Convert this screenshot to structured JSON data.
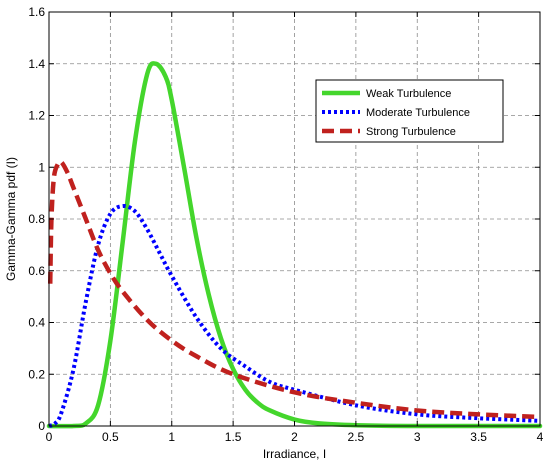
{
  "chart_data": {
    "type": "line",
    "title": "",
    "xlabel": "Irradiance, I",
    "ylabel": "Gamma-Gamma pdf (I)",
    "xlim": [
      0,
      4
    ],
    "ylim": [
      0,
      1.6
    ],
    "x_ticks": [
      "0",
      "0.5",
      "1",
      "1.5",
      "2",
      "2.5",
      "3",
      "3.5",
      "4"
    ],
    "y_ticks": [
      "0",
      "0.2",
      "0.4",
      "0.6",
      "0.8",
      "1",
      "1.2",
      "1.4",
      "1.6"
    ],
    "grid": true,
    "legend_position": "top-right",
    "series": [
      {
        "name": "Weak Turbulence",
        "color": "#44d62c",
        "style": "solid",
        "x": [
          0,
          0.2,
          0.3,
          0.4,
          0.5,
          0.6,
          0.7,
          0.8,
          0.87,
          0.95,
          1.0,
          1.1,
          1.2,
          1.3,
          1.4,
          1.5,
          1.6,
          1.7,
          1.8,
          2.0,
          2.2,
          2.5,
          3.0,
          4.0
        ],
        "y": [
          0,
          0.0,
          0.01,
          0.08,
          0.33,
          0.71,
          1.1,
          1.36,
          1.4,
          1.35,
          1.26,
          1.0,
          0.73,
          0.51,
          0.34,
          0.22,
          0.14,
          0.09,
          0.06,
          0.025,
          0.01,
          0.003,
          0.0,
          0.0
        ]
      },
      {
        "name": "Moderate Turbulence",
        "color": "#0000ff",
        "style": "dotted",
        "x": [
          0,
          0.05,
          0.1,
          0.2,
          0.3,
          0.4,
          0.5,
          0.6,
          0.7,
          0.8,
          0.9,
          1.0,
          1.2,
          1.4,
          1.6,
          1.8,
          2.0,
          2.5,
          3.0,
          3.5,
          4.0
        ],
        "y": [
          0,
          0.01,
          0.05,
          0.22,
          0.48,
          0.7,
          0.82,
          0.85,
          0.83,
          0.76,
          0.67,
          0.58,
          0.42,
          0.3,
          0.23,
          0.17,
          0.14,
          0.08,
          0.045,
          0.03,
          0.02
        ]
      },
      {
        "name": "Strong Turbulence",
        "color": "#c0211e",
        "style": "dashed",
        "x": [
          0.01,
          0.02,
          0.04,
          0.07,
          0.1,
          0.15,
          0.2,
          0.3,
          0.4,
          0.5,
          0.6,
          0.8,
          1.0,
          1.2,
          1.5,
          2.0,
          2.5,
          3.0,
          3.5,
          4.0
        ],
        "y": [
          0.55,
          0.8,
          0.96,
          1.01,
          1.02,
          0.98,
          0.92,
          0.8,
          0.68,
          0.59,
          0.52,
          0.41,
          0.33,
          0.27,
          0.2,
          0.13,
          0.09,
          0.06,
          0.045,
          0.035
        ]
      }
    ]
  }
}
